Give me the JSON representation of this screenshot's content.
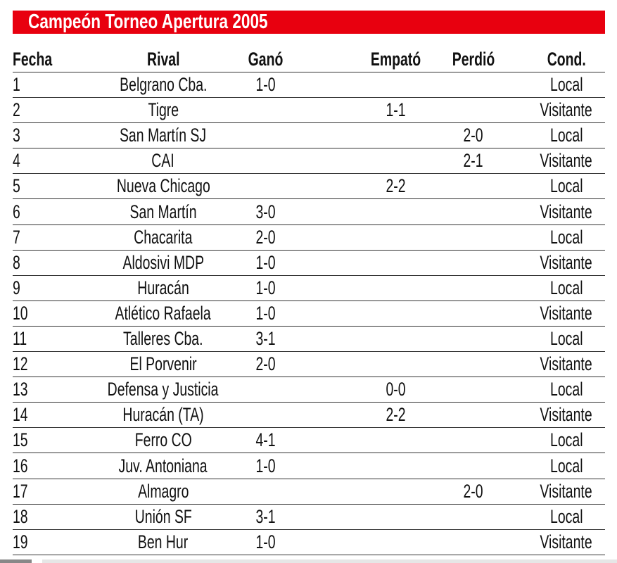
{
  "title": "Campeón Torneo Apertura 2005",
  "headers": [
    "Fecha",
    "Rival",
    "Ganó",
    "Empató",
    "Perdió",
    "Cond."
  ],
  "rows": [
    [
      "1",
      "Belgrano Cba.",
      "1-0",
      "",
      "",
      "Local"
    ],
    [
      "2",
      "Tigre",
      "",
      "1-1",
      "",
      "Visitante"
    ],
    [
      "3",
      "San Martín SJ",
      "",
      "",
      "2-0",
      "Local"
    ],
    [
      "4",
      "CAI",
      "",
      "",
      "2-1",
      "Visitante"
    ],
    [
      "5",
      "Nueva Chicago",
      "",
      "2-2",
      "",
      "Local"
    ],
    [
      "6",
      "San Martín",
      "3-0",
      "",
      "",
      "Visitante"
    ],
    [
      "7",
      "Chacarita",
      "2-0",
      "",
      "",
      "Local"
    ],
    [
      "8",
      "Aldosivi MDP",
      "1-0",
      "",
      "",
      "Visitante"
    ],
    [
      "9",
      "Huracán",
      "1-0",
      "",
      "",
      "Local"
    ],
    [
      "10",
      "Atlético Rafaela",
      "1-0",
      "",
      "",
      "Visitante"
    ],
    [
      "11",
      "Talleres Cba.",
      "3-1",
      "",
      "",
      "Local"
    ],
    [
      "12",
      "El Porvenir",
      "2-0",
      "",
      "",
      "Visitante"
    ],
    [
      "13",
      "Defensa y Justicia",
      "",
      "0-0",
      "",
      "Local"
    ],
    [
      "14",
      "Huracán (TA)",
      "",
      "2-2",
      "",
      "Visitante"
    ],
    [
      "15",
      "Ferro CO",
      "4-1",
      "",
      "",
      "Local"
    ],
    [
      "16",
      "Juv. Antoniana",
      "1-0",
      "",
      "",
      "Local"
    ],
    [
      "17",
      "Almagro",
      "",
      "",
      "2-0",
      "Visitante"
    ],
    [
      "18",
      "Unión SF",
      "3-1",
      "",
      "",
      "Local"
    ],
    [
      "19",
      "Ben Hur",
      "1-0",
      "",
      "",
      "Visitante"
    ]
  ],
  "colors": {
    "title_bar": "#e8000f",
    "title_text": "#ffffff"
  }
}
